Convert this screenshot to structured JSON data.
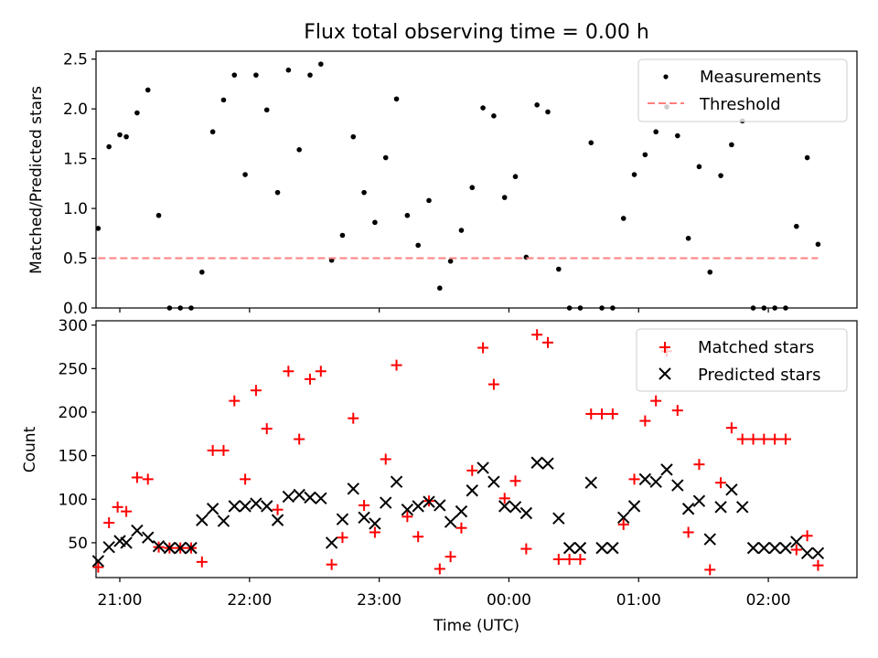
{
  "chart_data": [
    {
      "type": "scatter",
      "title": "Flux total observing time = 0.00 h",
      "ylabel": "Matched/Predicted stars",
      "xlabel": "",
      "xlim": [
        "20:49",
        "02:41"
      ],
      "ylim": [
        0,
        2.58
      ],
      "yticks": [
        0.0,
        0.5,
        1.0,
        1.5,
        2.0,
        2.5
      ],
      "ytick_labels": [
        "0.0",
        "0.5",
        "1.0",
        "1.5",
        "2.0",
        "2.5"
      ],
      "legend_position": "top-right",
      "legend": [
        "Measurements",
        "Threshold"
      ],
      "series": [
        {
          "name": "Measurements",
          "color": "#000000",
          "marker": "dot",
          "x": [
            "20:50",
            "20:55",
            "21:00",
            "21:03",
            "21:08",
            "21:13",
            "21:18",
            "21:23",
            "21:28",
            "21:33",
            "21:38",
            "21:43",
            "21:48",
            "21:53",
            "21:58",
            "22:03",
            "22:08",
            "22:13",
            "22:18",
            "22:23",
            "22:28",
            "22:33",
            "22:38",
            "22:43",
            "22:48",
            "22:53",
            "22:58",
            "23:03",
            "23:08",
            "23:13",
            "23:18",
            "23:23",
            "23:28",
            "23:33",
            "23:38",
            "23:43",
            "23:48",
            "23:53",
            "23:58",
            "24:03",
            "24:08",
            "24:13",
            "24:18",
            "24:23",
            "24:28",
            "24:33",
            "24:38",
            "24:43",
            "24:48",
            "24:53",
            "24:58",
            "25:03",
            "25:08",
            "25:13",
            "25:18",
            "25:23",
            "25:28",
            "25:33",
            "25:38",
            "25:43",
            "25:48",
            "25:53",
            "25:58",
            "26:03",
            "26:08",
            "26:13",
            "26:18",
            "26:23"
          ],
          "y": [
            0.8,
            1.62,
            1.74,
            1.72,
            1.96,
            2.19,
            0.93,
            0.0,
            0.0,
            0.0,
            0.36,
            1.77,
            2.09,
            2.34,
            1.34,
            2.34,
            1.99,
            1.16,
            2.39,
            1.59,
            2.34,
            2.45,
            0.48,
            0.73,
            1.72,
            1.16,
            0.86,
            1.51,
            2.1,
            0.93,
            0.63,
            1.08,
            0.2,
            0.47,
            0.78,
            1.21,
            2.01,
            1.93,
            1.11,
            1.32,
            0.51,
            2.04,
            1.97,
            0.39,
            0.0,
            0.0,
            1.66,
            0.0,
            0.0,
            0.9,
            1.34,
            1.54,
            1.77,
            2.02,
            1.73,
            0.7,
            1.42,
            0.36,
            1.33,
            1.64,
            1.88,
            0.0,
            0.0,
            0.0,
            0.0,
            0.82,
            1.51,
            0.64
          ]
        },
        {
          "name": "Threshold",
          "color": "#ff7f7f",
          "style": "dashed",
          "x": [
            "20:50",
            "26:23"
          ],
          "y": [
            0.5,
            0.5
          ]
        }
      ]
    },
    {
      "type": "scatter",
      "title": "",
      "ylabel": "Count",
      "xlabel": "Time (UTC)",
      "xlim": [
        "20:49",
        "02:41"
      ],
      "ylim": [
        10,
        305
      ],
      "yticks": [
        50,
        100,
        150,
        200,
        250,
        300
      ],
      "ytick_labels": [
        "50",
        "100",
        "150",
        "200",
        "250",
        "300"
      ],
      "xticks": [
        "21:00",
        "22:00",
        "23:00",
        "00:00",
        "01:00",
        "02:00"
      ],
      "legend_position": "top-right",
      "legend": [
        "Matched stars",
        "Predicted stars"
      ],
      "series": [
        {
          "name": "Matched stars",
          "color": "#ff0000",
          "marker": "plus",
          "x": [
            "20:50",
            "20:55",
            "20:59",
            "21:03",
            "21:08",
            "21:13",
            "21:18",
            "21:23",
            "21:28",
            "21:33",
            "21:38",
            "21:43",
            "21:48",
            "21:53",
            "21:58",
            "22:03",
            "22:08",
            "22:13",
            "22:18",
            "22:23",
            "22:28",
            "22:33",
            "22:38",
            "22:43",
            "22:48",
            "22:53",
            "22:58",
            "23:03",
            "23:08",
            "23:13",
            "23:18",
            "23:23",
            "23:28",
            "23:33",
            "23:38",
            "23:43",
            "23:48",
            "23:53",
            "23:58",
            "24:03",
            "24:08",
            "24:13",
            "24:18",
            "24:23",
            "24:28",
            "24:33",
            "24:38",
            "24:43",
            "24:48",
            "24:53",
            "24:58",
            "25:03",
            "25:08",
            "25:13",
            "25:18",
            "25:23",
            "25:28",
            "25:33",
            "25:38",
            "25:43",
            "25:48",
            "25:53",
            "25:58",
            "26:03",
            "26:08",
            "26:13",
            "26:18",
            "26:23"
          ],
          "y": [
            22,
            73,
            91,
            86,
            125,
            123,
            45,
            44,
            44,
            44,
            28,
            156,
            156,
            213,
            123,
            225,
            181,
            88,
            247,
            169,
            238,
            247,
            25,
            56,
            193,
            93,
            62,
            146,
            254,
            80,
            57,
            98,
            20,
            34,
            67,
            133,
            274,
            232,
            101,
            121,
            43,
            289,
            280,
            31,
            31,
            31,
            198,
            198,
            198,
            71,
            123,
            190,
            213,
            270,
            202,
            62,
            140,
            19,
            119,
            182,
            169,
            169,
            169,
            169,
            169,
            42,
            58,
            24
          ]
        },
        {
          "name": "Predicted stars",
          "color": "#000000",
          "marker": "x",
          "x": [
            "20:50",
            "20:55",
            "21:00",
            "21:03",
            "21:08",
            "21:13",
            "21:18",
            "21:23",
            "21:28",
            "21:33",
            "21:38",
            "21:43",
            "21:48",
            "21:53",
            "21:58",
            "22:03",
            "22:08",
            "22:13",
            "22:18",
            "22:23",
            "22:28",
            "22:33",
            "22:38",
            "22:43",
            "22:48",
            "22:53",
            "22:58",
            "23:03",
            "23:08",
            "23:13",
            "23:18",
            "23:23",
            "23:28",
            "23:33",
            "23:38",
            "23:43",
            "23:48",
            "23:53",
            "23:58",
            "24:03",
            "24:08",
            "24:13",
            "24:18",
            "24:23",
            "24:28",
            "24:33",
            "24:38",
            "24:43",
            "24:48",
            "24:53",
            "24:58",
            "25:03",
            "25:08",
            "25:13",
            "25:18",
            "25:23",
            "25:28",
            "25:33",
            "25:38",
            "25:43",
            "25:48",
            "25:53",
            "25:58",
            "26:03",
            "26:08",
            "26:13",
            "26:18",
            "26:23"
          ],
          "y": [
            29,
            45,
            52,
            50,
            64,
            56,
            46,
            44,
            44,
            44,
            76,
            89,
            75,
            92,
            92,
            95,
            92,
            76,
            103,
            105,
            102,
            101,
            50,
            77,
            112,
            79,
            72,
            96,
            120,
            88,
            92,
            97,
            93,
            74,
            86,
            110,
            136,
            120,
            92,
            91,
            84,
            142,
            141,
            78,
            44,
            44,
            119,
            44,
            44,
            79,
            92,
            123,
            120,
            134,
            116,
            89,
            98,
            54,
            91,
            111,
            91,
            44,
            44,
            44,
            44,
            51,
            38,
            38
          ]
        }
      ]
    }
  ]
}
